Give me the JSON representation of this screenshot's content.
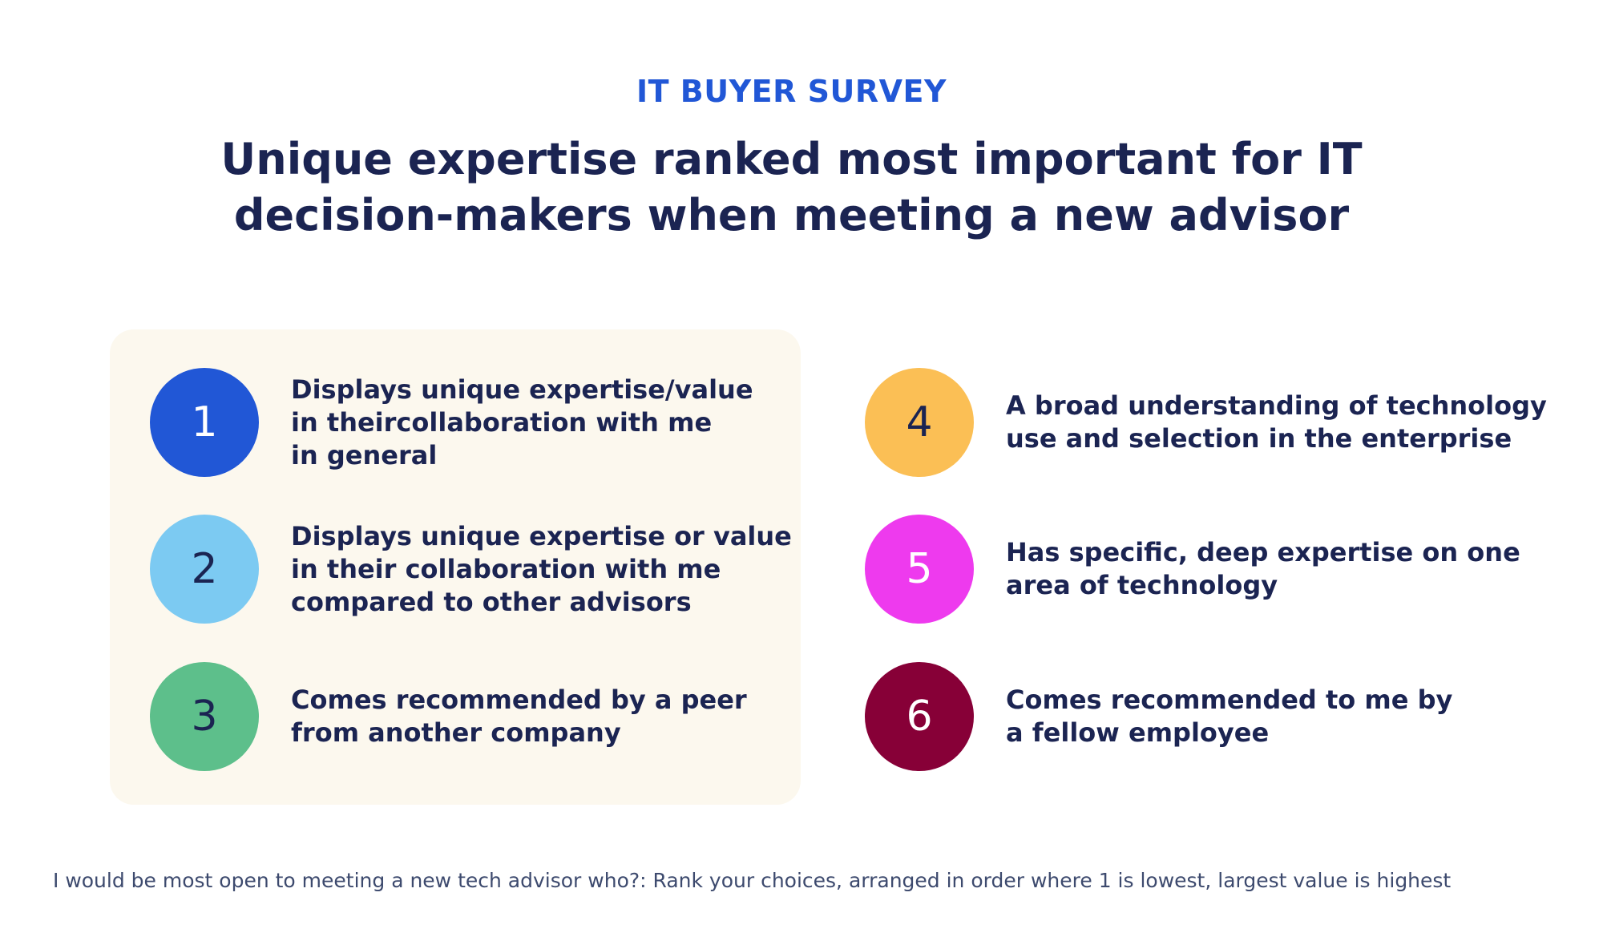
{
  "kicker": "IT BUYER SURVEY",
  "headline": "Unique expertise ranked most important for IT\ndecision-makers when meeting a new advisor",
  "items": [
    {
      "rank": "1",
      "label": "Displays unique expertise/value\nin theircollaboration with me\nin general",
      "color": "#2157d6",
      "text_color": "#ffffff",
      "highlighted": true
    },
    {
      "rank": "2",
      "label": "Displays unique expertise or value\nin their collaboration with me\ncompared to other advisors",
      "color": "#7ccaf2",
      "text_color": "#1b2452",
      "highlighted": true
    },
    {
      "rank": "3",
      "label": "Comes recommended by a peer\nfrom another company",
      "color": "#5dbf8b",
      "text_color": "#1b2452",
      "highlighted": true
    },
    {
      "rank": "4",
      "label": "A broad understanding of technology\nuse and selection in the enterprise",
      "color": "#fbbf55",
      "text_color": "#1b2452",
      "highlighted": false
    },
    {
      "rank": "5",
      "label": "Has specific, deep expertise on one\narea of technology",
      "color": "#ee3aee",
      "text_color": "#ffffff",
      "highlighted": false
    },
    {
      "rank": "6",
      "label": "Comes recommended to me by\na fellow employee",
      "color": "#870037",
      "text_color": "#ffffff",
      "highlighted": false
    }
  ],
  "footnote": "I would be most open to meeting a new tech advisor who?: Rank your choices, arranged in order where 1 is lowest, largest value is highest"
}
